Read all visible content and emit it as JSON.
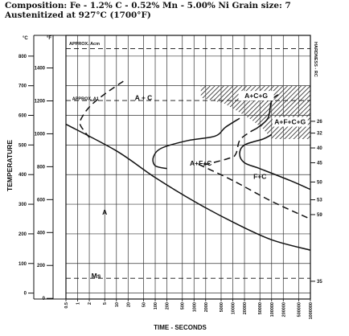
{
  "header": {
    "composition": "Composition: Fe - 1.2% C - 0.52% Mn - 5.00% Ni Grain size: 7",
    "austenitized": "Austenitized at 927°C (1700°F)"
  },
  "chart_data": {
    "type": "line",
    "title": "",
    "xlabel": "TIME - SECONDS",
    "ylabel": "TEMPERATURE",
    "right_axis_label": "HARDNESS - RC",
    "x_scale": "log",
    "xlim": [
      0.5,
      1000000
    ],
    "ylim": [
      -20,
      870
    ],
    "x_ticks": [
      {
        "value": 0.5,
        "label": "0.5"
      },
      {
        "value": 1,
        "label": "1"
      },
      {
        "value": 2,
        "label": "2"
      },
      {
        "value": 5,
        "label": "5"
      },
      {
        "value": 10,
        "label": "10"
      },
      {
        "value": 20,
        "label": "20"
      },
      {
        "value": 50,
        "label": "50"
      },
      {
        "value": 100,
        "label": "100"
      },
      {
        "value": 200,
        "label": "200"
      },
      {
        "value": 500,
        "label": "500"
      },
      {
        "value": 1000,
        "label": "1000"
      },
      {
        "value": 2000,
        "label": "2000"
      },
      {
        "value": 5000,
        "label": "5000"
      },
      {
        "value": 10000,
        "label": "10000"
      },
      {
        "value": 20000,
        "label": "20000"
      },
      {
        "value": 50000,
        "label": "50000"
      },
      {
        "value": 100000,
        "label": "100000"
      },
      {
        "value": 200000,
        "label": "200000"
      },
      {
        "value": 500000,
        "label": "500000"
      },
      {
        "value": 1000000,
        "label": "1000000"
      }
    ],
    "y_ticks_c": [
      {
        "value": 0,
        "label": "0"
      },
      {
        "value": 100,
        "label": "100"
      },
      {
        "value": 200,
        "label": "200"
      },
      {
        "value": 300,
        "label": "300"
      },
      {
        "value": 400,
        "label": "400"
      },
      {
        "value": 500,
        "label": "500"
      },
      {
        "value": 600,
        "label": "600"
      },
      {
        "value": 700,
        "label": "700"
      },
      {
        "value": 800,
        "label": "800"
      }
    ],
    "y_unit_c": "°C",
    "y_ticks_f": [
      {
        "value": 0,
        "label": "0"
      },
      {
        "value": 200,
        "label": "200"
      },
      {
        "value": 400,
        "label": "400"
      },
      {
        "value": 600,
        "label": "600"
      },
      {
        "value": 800,
        "label": "800"
      },
      {
        "value": 1000,
        "label": "1000"
      },
      {
        "value": 1200,
        "label": "1200"
      },
      {
        "value": 1400,
        "label": "1400"
      }
    ],
    "y_unit_f": "°F",
    "hardness_ticks": [
      {
        "temp_c": 580,
        "label": "26"
      },
      {
        "temp_c": 540,
        "label": "32"
      },
      {
        "temp_c": 490,
        "label": "40"
      },
      {
        "temp_c": 440,
        "label": "45"
      },
      {
        "temp_c": 375,
        "label": "50"
      },
      {
        "temp_c": 315,
        "label": "53"
      },
      {
        "temp_c": 265,
        "label": "59"
      },
      {
        "temp_c": 40,
        "label": "35"
      }
    ],
    "horizontal_lines": [
      {
        "name": "APPROX Acm",
        "label": "APPROX. Acm",
        "temp_c": 825,
        "style": "dashed"
      },
      {
        "name": "APPROX A1",
        "label": "APPROX. A1",
        "temp_c": 650,
        "style": "dashed"
      },
      {
        "name": "Ms",
        "label": "Ms",
        "temp_c": 50,
        "style": "dashed"
      }
    ],
    "series": [
      {
        "id": "acm_start",
        "style": "dashed",
        "points": [
          [
            15,
            715
          ],
          [
            5,
            672
          ],
          [
            2,
            628
          ],
          [
            1.2,
            585
          ],
          [
            1.2,
            565
          ],
          [
            2,
            525
          ]
        ]
      },
      {
        "id": "ferrite_carbide_start",
        "style": "solid",
        "points": [
          [
            15000,
            590
          ],
          [
            6500,
            560
          ],
          [
            3500,
            530
          ],
          [
            700,
            515
          ],
          [
            150,
            490
          ],
          [
            90,
            460
          ],
          [
            100,
            430
          ],
          [
            200,
            420
          ]
        ]
      },
      {
        "id": "ferrite_carbide_start_upper",
        "style": "solid",
        "points": [
          [
            150000,
            670
          ],
          [
            100000,
            650
          ],
          [
            80000,
            590
          ],
          [
            40000,
            555
          ]
        ]
      },
      {
        "id": "carbide_start_dashed",
        "style": "dashed",
        "points": [
          [
            40000,
            555
          ],
          [
            25000,
            540
          ],
          [
            15000,
            515
          ],
          [
            12000,
            470
          ],
          [
            8000,
            455
          ],
          [
            1500,
            430
          ]
        ]
      },
      {
        "id": "ferrite_carbide_finish",
        "style": "solid",
        "points": [
          [
            1000000,
            350
          ],
          [
            300000,
            380
          ],
          [
            50000,
            420
          ],
          [
            20000,
            440
          ],
          [
            15000,
            470
          ],
          [
            20000,
            500
          ],
          [
            60000,
            520
          ],
          [
            100000,
            535
          ]
        ]
      },
      {
        "id": "ferrite_carbide_finish_dashed",
        "style": "dashed",
        "points": [
          [
            1300,
            435
          ],
          [
            10000,
            380
          ],
          [
            100000,
            310
          ],
          [
            1000000,
            250
          ]
        ]
      },
      {
        "id": "cooling_line",
        "style": "solid",
        "points": [
          [
            0.5,
            570
          ],
          [
            10,
            480
          ],
          [
            100,
            390
          ],
          [
            1000,
            310
          ],
          [
            10000,
            240
          ],
          [
            100000,
            180
          ],
          [
            1000000,
            145
          ]
        ]
      }
    ],
    "shaded_region": {
      "label": "A+F+C+G",
      "x_range": [
        1500,
        1000000
      ],
      "temp_range": [
        520,
        700
      ]
    },
    "annotations": [
      {
        "text": "APPROX. Acm",
        "x": 1.5,
        "temp_c": 838
      },
      {
        "text": "APPROX. A1",
        "x": 1.6,
        "temp_c": 652
      },
      {
        "text": "A + C",
        "x": 50,
        "temp_c": 652
      },
      {
        "text": "A+C+G",
        "x": 40000,
        "temp_c": 658
      },
      {
        "text": "A+F+C+G",
        "x": 300000,
        "temp_c": 570
      },
      {
        "text": "A+F+C",
        "x": 1500,
        "temp_c": 430
      },
      {
        "text": "F+C",
        "x": 50000,
        "temp_c": 385
      },
      {
        "text": "A",
        "x": 5,
        "temp_c": 265
      },
      {
        "text": "Ms",
        "x": 3,
        "temp_c": 50
      }
    ]
  }
}
